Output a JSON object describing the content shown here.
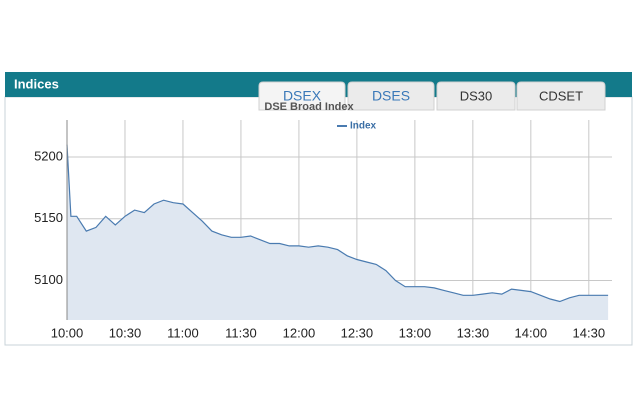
{
  "header": {
    "title": "Indices"
  },
  "tabs": [
    "DSEX",
    "DSES",
    "DS30",
    "CDSET"
  ],
  "chart_data": {
    "type": "area",
    "title": "DSE Broad Index",
    "series": [
      {
        "name": "Index",
        "color": "#4a7bb0",
        "fill": "#dfe7f1",
        "values": [
          5210,
          5152,
          5152,
          5140,
          5143,
          5152,
          5145,
          5152,
          5157,
          5155,
          5162,
          5165,
          5163,
          5162,
          5155,
          5148,
          5140,
          5137,
          5135,
          5135,
          5136,
          5133,
          5130,
          5130,
          5128,
          5128,
          5127,
          5128,
          5127,
          5125,
          5120,
          5117,
          5115,
          5113,
          5108,
          5100,
          5095,
          5095,
          5095,
          5094,
          5092,
          5090,
          5088,
          5088,
          5089,
          5090,
          5089,
          5093,
          5092,
          5091,
          5088,
          5085,
          5083,
          5086,
          5088,
          5088,
          5088
        ]
      }
    ],
    "x": [
      "10:00",
      "10:02",
      "10:05",
      "10:10",
      "10:15",
      "10:20",
      "10:25",
      "10:30",
      "10:35",
      "10:40",
      "10:45",
      "10:50",
      "10:55",
      "11:00",
      "11:05",
      "11:10",
      "11:15",
      "11:20",
      "11:25",
      "11:30",
      "11:35",
      "11:40",
      "11:45",
      "11:50",
      "11:55",
      "12:00",
      "12:05",
      "12:10",
      "12:15",
      "12:20",
      "12:25",
      "12:30",
      "12:35",
      "12:40",
      "12:45",
      "12:50",
      "12:55",
      "13:00",
      "13:05",
      "13:10",
      "13:15",
      "13:20",
      "13:25",
      "13:30",
      "13:35",
      "13:40",
      "13:45",
      "13:50",
      "13:55",
      "14:00",
      "14:05",
      "14:10",
      "14:15",
      "14:20",
      "14:25",
      "14:30",
      "14:40"
    ],
    "xlim": [
      "10:00",
      "14:42"
    ],
    "xticks": [
      "10:00",
      "10:30",
      "11:00",
      "11:30",
      "12:00",
      "12:30",
      "13:00",
      "13:30",
      "14:00",
      "14:30"
    ],
    "ylim": [
      5068,
      5230
    ],
    "yticks": [
      5100,
      5150,
      5200
    ],
    "grid": true
  }
}
